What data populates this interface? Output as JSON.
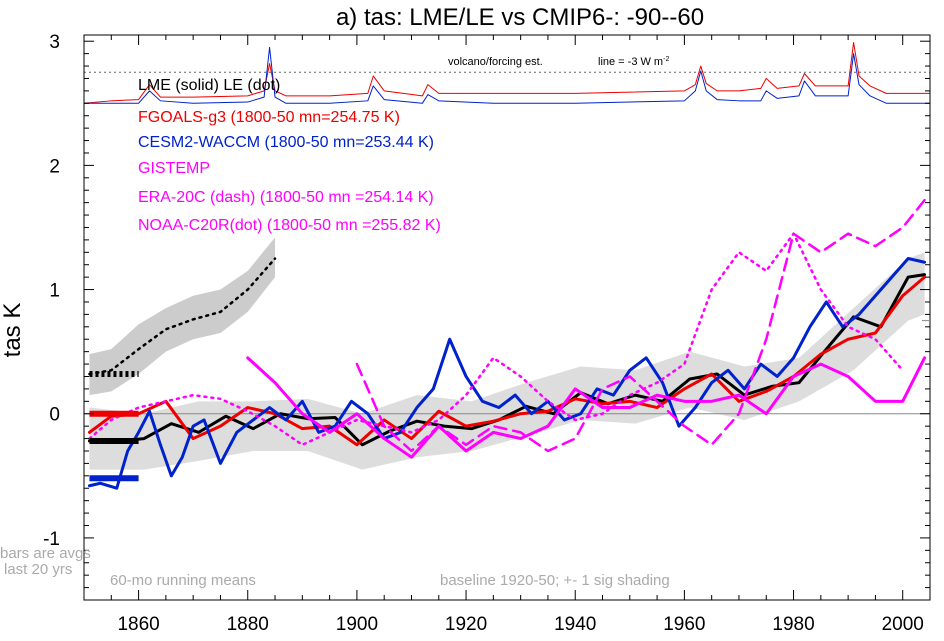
{
  "chart_data": {
    "type": "line",
    "title": "a) tas: LME/LE vs CMIP6-: -90--60",
    "ylabel": "tas K",
    "xlim": [
      1850,
      2005
    ],
    "ylim": [
      -1.5,
      3.05
    ],
    "x_ticks": [
      "1860",
      "1880",
      "1900",
      "1920",
      "1940",
      "1960",
      "1980",
      "2000"
    ],
    "y_ticks": [
      "-1",
      "0",
      "1",
      "2",
      "3"
    ],
    "grid": false,
    "legend_placement": "top-left",
    "legend": {
      "lme_le": "LME (solid)   LE (dot)",
      "fgoals": "FGOALS-g3 (1800-50 mn=254.75 K)",
      "cesm": "CESM2-WACCM (1800-50 mn=253.44 K)",
      "gistemp": "GISTEMP",
      "era20c": "ERA-20C (dash) (1800-50 mn =254.14 K)",
      "noaa": "NOAA-C20R(dot) (1800-50 mn =255.82 K)"
    },
    "colors": {
      "lme": "#000000",
      "fgoals": "#ee0000",
      "cesm": "#0022cc",
      "observations": "#ff00ff",
      "shading": "#cccccc",
      "annotation": "#aaaaaa"
    },
    "annotations": {
      "volcano": "volcano/forcing est.",
      "forcing_line_prefix": "line = -3 W m",
      "forcing_line_sup": "-2",
      "bars_line1": "bars are avgs",
      "bars_line2": "last 20 yrs",
      "running_means": "60-mo running means",
      "baseline": "baseline 1920-50; +- 1 sig shading"
    },
    "series": [
      {
        "name": "LME (solid)",
        "color": "#000000",
        "style": "solid",
        "x": [
          1851,
          1856,
          1861,
          1866,
          1871,
          1876,
          1881,
          1886,
          1891,
          1896,
          1901,
          1906,
          1911,
          1916,
          1921,
          1926,
          1931,
          1936,
          1941,
          1946,
          1951,
          1956,
          1961,
          1966,
          1971,
          1976,
          1981,
          1986,
          1991,
          1996,
          2001,
          2004
        ],
        "y": [
          -0.22,
          -0.22,
          -0.2,
          -0.08,
          -0.15,
          -0.02,
          -0.12,
          0.0,
          -0.04,
          -0.03,
          -0.25,
          -0.14,
          -0.06,
          -0.1,
          -0.12,
          -0.05,
          0.06,
          0.0,
          0.17,
          0.08,
          0.15,
          0.1,
          0.28,
          0.32,
          0.15,
          0.22,
          0.25,
          0.52,
          0.78,
          0.7,
          1.1,
          1.12
        ]
      },
      {
        "name": "LE (dot)",
        "color": "#000000",
        "style": "dotted",
        "x": [
          1851,
          1855,
          1860,
          1865,
          1870,
          1875,
          1880,
          1885
        ],
        "y": [
          0.32,
          0.35,
          0.52,
          0.68,
          0.76,
          0.82,
          1.0,
          1.25
        ]
      },
      {
        "name": "FGOALS-g3",
        "color": "#ee0000",
        "style": "solid",
        "x": [
          1851,
          1855,
          1860,
          1865,
          1870,
          1875,
          1880,
          1885,
          1890,
          1895,
          1900,
          1905,
          1910,
          1915,
          1920,
          1925,
          1930,
          1935,
          1940,
          1945,
          1950,
          1955,
          1960,
          1965,
          1970,
          1975,
          1980,
          1985,
          1990,
          1995,
          2000,
          2004
        ],
        "y": [
          -0.15,
          -0.02,
          0.0,
          0.1,
          -0.2,
          -0.1,
          0.05,
          0.0,
          -0.12,
          -0.1,
          -0.25,
          -0.05,
          -0.2,
          0.02,
          -0.1,
          -0.06,
          0.0,
          0.02,
          0.12,
          0.08,
          0.1,
          0.05,
          0.2,
          0.32,
          0.1,
          0.18,
          0.3,
          0.48,
          0.6,
          0.65,
          0.95,
          1.1
        ]
      },
      {
        "name": "CESM2-WACCM",
        "color": "#0022cc",
        "style": "solid",
        "x": [
          1851,
          1853,
          1856,
          1858,
          1860,
          1862,
          1864,
          1866,
          1868,
          1870,
          1872,
          1875,
          1878,
          1881,
          1884,
          1887,
          1890,
          1893,
          1896,
          1899,
          1902,
          1905,
          1908,
          1911,
          1914,
          1917,
          1920,
          1923,
          1926,
          1929,
          1932,
          1935,
          1938,
          1941,
          1944,
          1947,
          1950,
          1953,
          1956,
          1959,
          1962,
          1965,
          1968,
          1971,
          1974,
          1977,
          1980,
          1983,
          1986,
          1989,
          1992,
          1995,
          1998,
          2001,
          2004
        ],
        "y": [
          -0.58,
          -0.56,
          -0.6,
          -0.3,
          -0.15,
          0.02,
          -0.25,
          -0.5,
          -0.35,
          -0.1,
          -0.05,
          -0.4,
          -0.15,
          -0.05,
          0.05,
          -0.05,
          0.1,
          -0.15,
          -0.1,
          0.1,
          0.0,
          -0.2,
          -0.15,
          0.05,
          0.2,
          0.6,
          0.3,
          0.1,
          0.05,
          0.15,
          0.0,
          0.1,
          -0.05,
          0.0,
          0.2,
          0.15,
          0.35,
          0.45,
          0.25,
          -0.1,
          0.05,
          0.25,
          0.35,
          0.2,
          0.4,
          0.3,
          0.45,
          0.7,
          0.9,
          0.7,
          0.8,
          0.95,
          1.1,
          1.25,
          1.22
        ]
      },
      {
        "name": "GISTEMP",
        "color": "#ff00ff",
        "style": "solid",
        "x": [
          1880,
          1885,
          1890,
          1895,
          1900,
          1905,
          1910,
          1915,
          1920,
          1925,
          1930,
          1935,
          1940,
          1945,
          1950,
          1955,
          1960,
          1965,
          1970,
          1975,
          1980,
          1985,
          1990,
          1995,
          2000,
          2004
        ],
        "y": [
          0.45,
          0.25,
          0.0,
          -0.15,
          0.0,
          -0.2,
          -0.35,
          -0.1,
          -0.3,
          -0.15,
          -0.2,
          -0.1,
          0.2,
          0.05,
          0.05,
          0.15,
          0.1,
          0.1,
          0.15,
          0.0,
          0.3,
          0.4,
          0.3,
          0.1,
          0.1,
          0.45
        ]
      },
      {
        "name": "ERA-20C (dash)",
        "color": "#ff00ff",
        "style": "dashed",
        "x": [
          1900,
          1905,
          1910,
          1915,
          1920,
          1925,
          1930,
          1935,
          1940,
          1945,
          1950,
          1955,
          1960,
          1965,
          1970,
          1975,
          1980,
          1985,
          1990,
          1995,
          2000,
          2004
        ],
        "y": [
          0.4,
          -0.1,
          -0.3,
          -0.1,
          -0.25,
          -0.1,
          -0.15,
          -0.3,
          -0.2,
          0.2,
          0.3,
          0.1,
          -0.1,
          -0.25,
          0.0,
          0.6,
          1.45,
          1.3,
          1.45,
          1.35,
          1.5,
          1.72
        ]
      },
      {
        "name": "NOAA-C20R(dot)",
        "color": "#ff00ff",
        "style": "dotted",
        "x": [
          1851,
          1855,
          1860,
          1865,
          1870,
          1875,
          1880,
          1885,
          1890,
          1895,
          1900,
          1905,
          1910,
          1915,
          1920,
          1925,
          1930,
          1935,
          1940,
          1945,
          1950,
          1955,
          1960,
          1965,
          1970,
          1975,
          1980,
          1985,
          1990,
          1995,
          2000
        ],
        "y": [
          -0.2,
          -0.05,
          0.05,
          0.1,
          0.15,
          0.12,
          0.02,
          -0.1,
          -0.25,
          -0.15,
          -0.05,
          -0.1,
          -0.15,
          -0.05,
          0.15,
          0.45,
          0.3,
          0.1,
          -0.05,
          0.0,
          0.15,
          0.25,
          0.4,
          1.0,
          1.3,
          1.15,
          1.45,
          1.0,
          0.7,
          0.6,
          0.35
        ]
      },
      {
        "name": "FGOALS-g3 forcing",
        "color": "#ee0000",
        "style": "solid",
        "x": [
          1850,
          1855,
          1860,
          1862,
          1864,
          1870,
          1880,
          1883,
          1884,
          1885,
          1887,
          1895,
          1902,
          1903,
          1905,
          1912,
          1913,
          1915,
          1925,
          1940,
          1960,
          1962,
          1963,
          1964,
          1966,
          1970,
          1974,
          1975,
          1977,
          1981,
          1982,
          1984,
          1990,
          1991,
          1992,
          1994,
          1997,
          2005
        ],
        "y": [
          2.5,
          2.52,
          2.53,
          2.65,
          2.55,
          2.55,
          2.56,
          2.6,
          2.82,
          2.6,
          2.56,
          2.56,
          2.58,
          2.72,
          2.6,
          2.56,
          2.65,
          2.58,
          2.58,
          2.58,
          2.6,
          2.65,
          2.8,
          2.66,
          2.6,
          2.6,
          2.62,
          2.7,
          2.62,
          2.64,
          2.74,
          2.64,
          2.64,
          2.99,
          2.72,
          2.64,
          2.58,
          2.58
        ]
      },
      {
        "name": "CESM2-WACCM forcing",
        "color": "#0022cc",
        "style": "solid",
        "x": [
          1850,
          1855,
          1860,
          1862,
          1864,
          1870,
          1880,
          1883,
          1884,
          1885,
          1887,
          1895,
          1902,
          1903,
          1905,
          1912,
          1913,
          1915,
          1925,
          1940,
          1960,
          1962,
          1963,
          1964,
          1966,
          1970,
          1974,
          1975,
          1977,
          1981,
          1982,
          1984,
          1990,
          1991,
          1992,
          1994,
          1997,
          2005
        ],
        "y": [
          2.5,
          2.5,
          2.5,
          2.6,
          2.52,
          2.5,
          2.51,
          2.55,
          2.95,
          2.55,
          2.5,
          2.5,
          2.52,
          2.64,
          2.53,
          2.5,
          2.57,
          2.52,
          2.5,
          2.5,
          2.52,
          2.6,
          2.76,
          2.6,
          2.53,
          2.52,
          2.52,
          2.6,
          2.54,
          2.56,
          2.68,
          2.56,
          2.56,
          2.9,
          2.65,
          2.56,
          2.5,
          2.5
        ]
      }
    ],
    "end_bars": [
      {
        "name": "LME",
        "color": "#000000",
        "style": "solid",
        "y": -0.22
      },
      {
        "name": "LE",
        "color": "#000000",
        "style": "dotted",
        "y": 0.32
      },
      {
        "name": "FGOALS-g3",
        "color": "#ee0000",
        "style": "solid",
        "y": 0.0
      },
      {
        "name": "CESM2-WACCM",
        "color": "#0022cc",
        "style": "solid",
        "y": -0.52
      }
    ],
    "forcing_reference_y": 2.75,
    "right_axis_mark_y": 0.75,
    "shading": [
      {
        "name": "LME +- 1 sig",
        "color": "#dddddd",
        "x": [
          1851,
          1861,
          1871,
          1881,
          1891,
          1901,
          1911,
          1921,
          1931,
          1941,
          1951,
          1961,
          1971,
          1981,
          1991,
          2001,
          2004
        ],
        "y_low": [
          -0.45,
          -0.45,
          -0.38,
          -0.3,
          -0.3,
          -0.45,
          -0.35,
          -0.3,
          -0.18,
          -0.05,
          -0.08,
          0.05,
          -0.05,
          0.1,
          0.35,
          0.75,
          0.8
        ],
        "y_high": [
          0.05,
          0.0,
          0.1,
          0.1,
          0.12,
          0.0,
          0.15,
          0.1,
          0.25,
          0.38,
          0.35,
          0.5,
          0.38,
          0.45,
          0.85,
          1.25,
          1.3
        ]
      },
      {
        "name": "LE +- 1 sig",
        "color": "#cccccc",
        "x": [
          1851,
          1855,
          1860,
          1865,
          1870,
          1875,
          1880,
          1885
        ],
        "y_low": [
          0.15,
          0.18,
          0.32,
          0.5,
          0.6,
          0.65,
          0.82,
          1.1
        ],
        "y_high": [
          0.48,
          0.52,
          0.72,
          0.85,
          0.95,
          1.0,
          1.15,
          1.42
        ]
      }
    ]
  }
}
